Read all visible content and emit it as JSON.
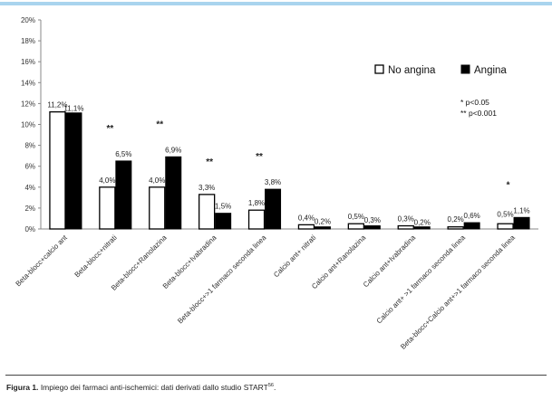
{
  "chart_data": {
    "type": "bar",
    "yticks": [
      "0%",
      "2%",
      "4%",
      "6%",
      "8%",
      "10%",
      "12%",
      "14%",
      "16%",
      "18%",
      "20%"
    ],
    "ylim": [
      0,
      20
    ],
    "grid": false,
    "legend_position": "top-right",
    "categories": [
      "Beta-blocc+calcio ant",
      "Beta-blocc+nitrati",
      "Beta-blocc+Ranolazina",
      "Beta-blocc+Ivabradina",
      "Beta-blocc+>1 farmaco seconda linea",
      "Calcio ant+ nitrati",
      "Calcio ant+Ranolazina",
      "Calcio ant+Ivabradina",
      "Calcio ant+ >1 farmaco seconda linea",
      "Beta-blocc+Calcio ant+>1 farmaco seconda linea"
    ],
    "series": [
      {
        "name": "No angina",
        "color": "#ffffff",
        "values": [
          11.2,
          4.0,
          4.0,
          3.3,
          1.8,
          0.4,
          0.5,
          0.3,
          0.2,
          0.5
        ],
        "labels": [
          "11,2%",
          "4,0%",
          "4,0%",
          "3,3%",
          "1,8%",
          "0,4%",
          "0,5%",
          "0,3%",
          "0,2%",
          "0,5%"
        ]
      },
      {
        "name": "Angina",
        "color": "#000000",
        "values": [
          11.1,
          6.5,
          6.9,
          1.5,
          3.8,
          0.2,
          0.3,
          0.2,
          0.6,
          1.1
        ],
        "labels": [
          "11,1%",
          "6,5%",
          "6,9%",
          "1,5%",
          "3,8%",
          "0,2%",
          "0,3%",
          "0,2%",
          "0,6%",
          "1,1%"
        ]
      }
    ],
    "significance": [
      "",
      "**",
      "**",
      "**",
      "**",
      "",
      "",
      "",
      "",
      "*"
    ],
    "notes": [
      "* p<0.05",
      "** p<0.001"
    ]
  },
  "caption": {
    "figure_label": "Figura 1.",
    "text": "Impiego dei farmaci anti-ischemici: dati derivati dallo studio START",
    "ref": "56"
  }
}
